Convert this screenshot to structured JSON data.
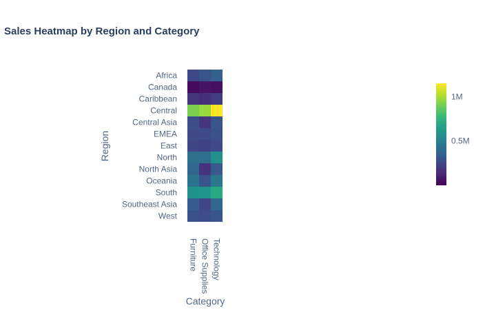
{
  "chart_data": {
    "type": "heatmap",
    "title": "Sales Heatmap by Region and Category",
    "xlabel": "Category",
    "ylabel": "Region",
    "x_categories": [
      "Furniture",
      "Office Supplies",
      "Technology"
    ],
    "y_categories": [
      "Africa",
      "Canada",
      "Caribbean",
      "Central",
      "Central Asia",
      "EMEA",
      "East",
      "North",
      "North Asia",
      "Oceania",
      "South",
      "Southeast Asia",
      "West"
    ],
    "values": [
      [
        250000,
        300000,
        350000
      ],
      [
        30000,
        60000,
        50000
      ],
      [
        180000,
        160000,
        200000
      ],
      [
        920000,
        970000,
        1150000
      ],
      [
        280000,
        180000,
        310000
      ],
      [
        260000,
        260000,
        290000
      ],
      [
        240000,
        230000,
        260000
      ],
      [
        420000,
        420000,
        580000
      ],
      [
        380000,
        170000,
        320000
      ],
      [
        440000,
        300000,
        460000
      ],
      [
        590000,
        600000,
        700000
      ],
      [
        330000,
        240000,
        380000
      ],
      [
        290000,
        270000,
        300000
      ]
    ],
    "colorscale": "Viridis",
    "zmin": 0,
    "zmax": 1150000,
    "colorbar": {
      "tick_values": [
        500000,
        1000000
      ],
      "tick_labels": [
        "0.5M",
        "1M"
      ]
    },
    "grid": false
  }
}
